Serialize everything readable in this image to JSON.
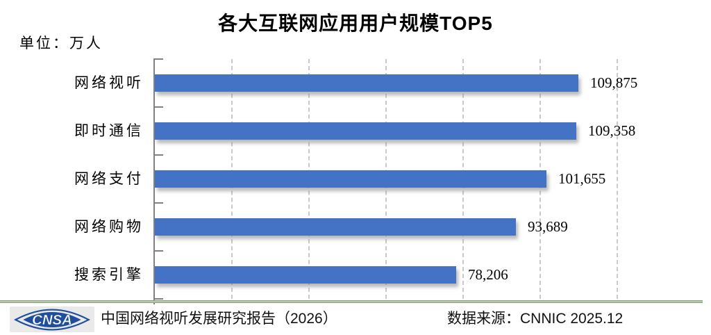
{
  "title": "各大互联网应用用户规模TOP5",
  "unit_label": "单位：万人",
  "chart_data": {
    "type": "bar",
    "orientation": "horizontal",
    "title": "各大互联网应用用户规模TOP5",
    "unit": "万人",
    "categories": [
      "网络视听",
      "即时通信",
      "网络支付",
      "网络购物",
      "搜索引擎"
    ],
    "values": [
      109875,
      109358,
      101655,
      93689,
      78206
    ],
    "value_labels": [
      "109,875",
      "109,358",
      "101,655",
      "93,689",
      "78,206"
    ],
    "xlim": [
      0,
      120000
    ],
    "gridline_interval": 20000,
    "grid": "vertical-dashed",
    "legend": "none"
  },
  "footer": {
    "logo_text": "CNSA",
    "report_label": "中国网络视听发展研究报告（2026）",
    "source_label": "数据来源：CNNIC 2025.12"
  },
  "colors": {
    "bar": "#4472C4",
    "axis": "#808080",
    "gridline": "#C9C9C9",
    "divider_green": "#6e8f66",
    "logo_blue": "#1f4e9c",
    "logo_bg": "#e9e9e9",
    "text": "#000000"
  }
}
